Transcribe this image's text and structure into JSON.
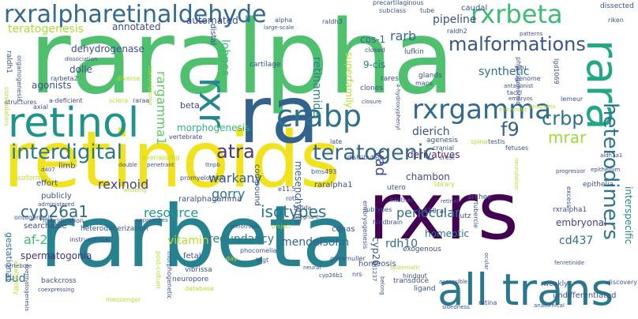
{
  "words": [
    {
      "text": "raralpha",
      "color": "#4fc06d"
    },
    {
      "text": "retinoids",
      "color": "#f2e21b"
    },
    {
      "text": "rarbeta",
      "color": "#26828e"
    },
    {
      "text": "rxrs",
      "color": "#440154"
    },
    {
      "text": "retinol",
      "color": "#1f948c"
    },
    {
      "text": "ra",
      "color": "#33628d"
    },
    {
      "text": "all trans",
      "color": "#2a788e"
    },
    {
      "text": "rara",
      "color": "#22a785"
    },
    {
      "text": "rxralpharetinaldehyde",
      "color": "#306a8e"
    },
    {
      "text": "rxr",
      "color": "#24868e"
    },
    {
      "text": "crabp",
      "color": "#2c718e"
    },
    {
      "text": "rxrgamma",
      "color": "#306a8e"
    },
    {
      "text": "rxrbeta",
      "color": "#3dbc74"
    },
    {
      "text": "heterodimers",
      "color": "#2b758e"
    },
    {
      "text": "malformations",
      "color": "#3a548c"
    },
    {
      "text": "interdigital",
      "color": "#2a788e"
    },
    {
      "text": "teratogenic",
      "color": "#31668e"
    },
    {
      "text": "atra",
      "color": "#453781"
    },
    {
      "text": "crbp",
      "color": "#2c738e"
    },
    {
      "text": "mrar",
      "color": "#a0da39"
    },
    {
      "text": "f9",
      "color": "#33628d"
    },
    {
      "text": "isotypes",
      "color": "#2c728e"
    },
    {
      "text": "cyp26a1",
      "color": "#306a8e"
    },
    {
      "text": "resource",
      "color": "#1f978b"
    },
    {
      "text": "periocular",
      "color": "#2f6c8e"
    },
    {
      "text": "warkany",
      "color": "#365d8d"
    },
    {
      "text": "gorry",
      "color": "#2a788e"
    },
    {
      "text": "rexinoid",
      "color": "#414287"
    },
    {
      "text": "vad",
      "color": "#404688"
    },
    {
      "text": "dierich",
      "color": "#3b528b"
    },
    {
      "text": "chambon",
      "color": "#3e4c8a"
    },
    {
      "text": "mesenchyme",
      "color": "#355f8d"
    },
    {
      "text": "compound",
      "color": "#3b528b"
    },
    {
      "text": "retinamide",
      "color": "#25848e"
    },
    {
      "text": "rargamma1",
      "color": "#5ec962"
    },
    {
      "text": "dehydrogenase",
      "color": "#3d4e8a"
    },
    {
      "text": "agonists",
      "color": "#3b528b"
    },
    {
      "text": "dolle",
      "color": "#3b528b"
    },
    {
      "text": "rarb",
      "color": "#31688e"
    },
    {
      "text": "pipeline",
      "color": "#3b528b"
    },
    {
      "text": "automated",
      "color": "#3f4889"
    },
    {
      "text": "annotated",
      "color": "#3d4d8a"
    },
    {
      "text": "teratogenesis",
      "color": "#aadc32"
    },
    {
      "text": "lohnes",
      "color": "#3dbc74"
    },
    {
      "text": "distal",
      "color": "#3d4e8a"
    },
    {
      "text": "superfamily",
      "color": "#b5de2b"
    },
    {
      "text": "9-cis",
      "color": "#2a788e"
    },
    {
      "text": "synthetic",
      "color": "#2e6e8e"
    },
    {
      "text": "cos-1",
      "color": "#31668e"
    },
    {
      "text": "derivatives",
      "color": "#482878"
    },
    {
      "text": "morphogenesis",
      "color": "#2fb47c"
    },
    {
      "text": "vitamin",
      "color": "#b5de2b"
    },
    {
      "text": "redundancy",
      "color": "#2a788e"
    },
    {
      "text": "mendelsohn",
      "color": "#31678e"
    },
    {
      "text": "rdh10",
      "color": "#31688e"
    },
    {
      "text": "spermatogonia",
      "color": "#46327e"
    },
    {
      "text": "af-2",
      "color": "#3fbc73"
    },
    {
      "text": "cd437",
      "color": "#2d708e"
    },
    {
      "text": "embryonal",
      "color": "#414487"
    },
    {
      "text": "homeotic",
      "color": "#2c728e"
    },
    {
      "text": "rxralpha1",
      "color": "#3b528b"
    },
    {
      "text": "cdnas",
      "color": "#3b528b"
    },
    {
      "text": "bud",
      "color": "#31688e"
    },
    {
      "text": "interspecific",
      "color": "#25858e"
    },
    {
      "text": "cyp26",
      "color": "#3a548c"
    },
    {
      "text": "homeosis",
      "color": "#3b528b"
    },
    {
      "text": "limb",
      "color": "#3b528b"
    },
    {
      "text": "effort",
      "color": "#3d4e8a"
    },
    {
      "text": "publicly",
      "color": "#3b528b"
    },
    {
      "text": "searchable",
      "color": "#3e4a89"
    },
    {
      "text": "gestational",
      "color": "#2c718e"
    },
    {
      "text": "raralpha1",
      "color": "#3b528b"
    },
    {
      "text": "raralphagamma",
      "color": "#3b528b"
    },
    {
      "text": "beta",
      "color": "#3e4989"
    },
    {
      "text": "fetal",
      "color": "#3b528b"
    },
    {
      "text": "caudal",
      "color": "#3b528b"
    },
    {
      "text": "lufkin",
      "color": "#3b528b"
    },
    {
      "text": "raldh1",
      "color": "#3b528b"
    },
    {
      "text": "isoforms",
      "color": "#b8de29"
    },
    {
      "text": "cartilage",
      "color": "#3b528b"
    },
    {
      "text": "glands",
      "color": "#3b528b"
    },
    {
      "text": "rares",
      "color": "#3b528b"
    },
    {
      "text": "clones",
      "color": "#3b528b"
    },
    {
      "text": "heterodimerization",
      "color": "#3b528b"
    },
    {
      "text": "backcross",
      "color": "#3b528b"
    },
    {
      "text": "vibrissa",
      "color": "#3b528b"
    },
    {
      "text": "neuropore",
      "color": "#3b528b"
    },
    {
      "text": "database",
      "color": "#b5de2b"
    },
    {
      "text": "transduce",
      "color": "#3b528b"
    },
    {
      "text": "ligand",
      "color": "#3b528b"
    },
    {
      "text": "hindgut",
      "color": "#3b528b"
    },
    {
      "text": "exogenous",
      "color": "#3b528b"
    },
    {
      "text": "subtypes",
      "color": "#3b528b"
    },
    {
      "text": "kastner",
      "color": "#3b528b"
    },
    {
      "text": "p450rai",
      "color": "#3b528b"
    },
    {
      "text": "lutz",
      "color": "#3b528b"
    },
    {
      "text": "epithelia",
      "color": "#3b528b"
    },
    {
      "text": "arches",
      "color": "#3b528b"
    },
    {
      "text": "utero",
      "color": "#3b528b"
    },
    {
      "text": "hindbrain",
      "color": "#3b528b"
    },
    {
      "text": "gansmuller",
      "color": "#3b528b"
    },
    {
      "text": "e11.5",
      "color": "#3b528b"
    },
    {
      "text": "bms493",
      "color": "#3b528b"
    },
    {
      "text": "roth",
      "color": "#3b528b"
    },
    {
      "text": "nrs",
      "color": "#3b528b"
    },
    {
      "text": "physiogenomic",
      "color": "#3b528b"
    },
    {
      "text": "genome",
      "color": "#3b528b"
    },
    {
      "text": "situ",
      "color": "#3b528b"
    },
    {
      "text": "riken",
      "color": "#3b528b"
    },
    {
      "text": "dissected",
      "color": "#3b528b"
    },
    {
      "text": "lemeur",
      "color": "#3b528b"
    },
    {
      "text": "testis",
      "color": "#3b528b"
    },
    {
      "text": "fetuses",
      "color": "#3b528b"
    },
    {
      "text": "agenesis",
      "color": "#3b528b"
    },
    {
      "text": "cranial",
      "color": "#3b528b"
    },
    {
      "text": "crest",
      "color": "#3b528b"
    },
    {
      "text": "spina",
      "color": "#b5de2b"
    },
    {
      "text": "late",
      "color": "#3b528b"
    },
    {
      "text": "distributed",
      "color": "#3b528b"
    },
    {
      "text": "vertebrate",
      "color": "#3b528b"
    },
    {
      "text": "overlapping",
      "color": "#b5de2b"
    },
    {
      "text": "ontogenesis",
      "color": "#3b528b"
    },
    {
      "text": "hybridization",
      "color": "#3b528b"
    },
    {
      "text": "administered",
      "color": "#3b528b"
    },
    {
      "text": "availability",
      "color": "#b5de2b"
    },
    {
      "text": "instrumental",
      "color": "#3b528b"
    },
    {
      "text": "post-coitum",
      "color": "#b5de2b"
    },
    {
      "text": "morphogenetic",
      "color": "#3b528b"
    },
    {
      "text": "messenger",
      "color": "#b5de2b"
    },
    {
      "text": "phocomelia",
      "color": "#3b528b"
    },
    {
      "text": "tegt",
      "color": "#3b528b"
    },
    {
      "text": "day",
      "color": "#b5de2b"
    },
    {
      "text": "promyelocytic",
      "color": "#3b528b"
    },
    {
      "text": "bifida",
      "color": "#3b528b"
    },
    {
      "text": "pregnant",
      "color": "#3b528b"
    },
    {
      "text": "embryogenesis",
      "color": "#3b528b"
    },
    {
      "text": "library",
      "color": "#b5de2b"
    },
    {
      "text": "retinal",
      "color": "#3b528b"
    },
    {
      "text": "tubercle",
      "color": "#3b528b"
    },
    {
      "text": "excess",
      "color": "#3b528b"
    },
    {
      "text": "coregulators",
      "color": "#b5de2b"
    },
    {
      "text": "raldh2",
      "color": "#3b528b"
    },
    {
      "text": "raldh3",
      "color": "#3b528b"
    },
    {
      "text": "alpha",
      "color": "#3b528b"
    },
    {
      "text": "large-scale",
      "color": "#3b528b"
    },
    {
      "text": "precartilaginous",
      "color": "#3b528b"
    },
    {
      "text": "subclass",
      "color": "#3b528b"
    },
    {
      "text": "tube",
      "color": "#3b528b"
    },
    {
      "text": "patterns",
      "color": "#3b528b"
    },
    {
      "text": "organogenesis",
      "color": "#3b528b"
    },
    {
      "text": "dissociation",
      "color": "#3b528b"
    },
    {
      "text": "rarbeta2",
      "color": "#3b528b"
    },
    {
      "text": "a-deficient",
      "color": "#3b528b"
    },
    {
      "text": "diverse",
      "color": "#b5de2b"
    },
    {
      "text": "transcriptome",
      "color": "#b5de2b"
    },
    {
      "text": "closed",
      "color": "#3b528b"
    },
    {
      "text": "closure",
      "color": "#3b528b"
    },
    {
      "text": "maps",
      "color": "#3b528b"
    },
    {
      "text": "antagonist",
      "color": "#3b528b"
    },
    {
      "text": "taccl",
      "color": "#3b528b"
    },
    {
      "text": "embryos",
      "color": "#3b528b"
    },
    {
      "text": "lgd1069",
      "color": "#3b528b"
    },
    {
      "text": "programs",
      "color": "#b5de2b"
    },
    {
      "text": "structures",
      "color": "#3b528b"
    },
    {
      "text": "axial",
      "color": "#3b528b"
    },
    {
      "text": "sclera",
      "color": "#b5de2b"
    },
    {
      "text": "raraa",
      "color": "#3b528b"
    },
    {
      "text": "4-hydroxyphenyl",
      "color": "#3b528b"
    },
    {
      "text": "enzymatic",
      "color": "#b5de2b"
    },
    {
      "text": "ttnpb",
      "color": "#3b528b"
    },
    {
      "text": "double",
      "color": "#3b528b"
    },
    {
      "text": "penetrant",
      "color": "#3b528b"
    },
    {
      "text": "d407",
      "color": "#3b528b"
    },
    {
      "text": "approaches",
      "color": "#3b528b"
    },
    {
      "text": "pleiotropic",
      "color": "#3b528b"
    },
    {
      "text": "project",
      "color": "#b5de2b"
    },
    {
      "text": "coexpressing",
      "color": "#3b528b"
    },
    {
      "text": "spermatogenesis",
      "color": "#3b528b"
    },
    {
      "text": "vertebrae",
      "color": "#3b528b"
    },
    {
      "text": "webbing",
      "color": "#b5de2b"
    },
    {
      "text": "belong",
      "color": "#3b528b"
    },
    {
      "text": "srl1237",
      "color": "#3b528b"
    },
    {
      "text": "cyp26b1",
      "color": "#3b528b"
    },
    {
      "text": "neural",
      "color": "#3b528b"
    },
    {
      "text": "ocular",
      "color": "#3b528b"
    },
    {
      "text": "systematic",
      "color": "#b5de2b"
    },
    {
      "text": "accessible",
      "color": "#3b528b"
    },
    {
      "text": "sidedness",
      "color": "#3b528b"
    },
    {
      "text": "retina",
      "color": "#3b528b"
    },
    {
      "text": "anatomical",
      "color": "#3b528b"
    },
    {
      "text": "weakly",
      "color": "#3b528b"
    },
    {
      "text": "fenretinide",
      "color": "#3b528b"
    },
    {
      "text": "undifferentiated",
      "color": "#3b528b"
    },
    {
      "text": "discovery",
      "color": "#3b528b"
    },
    {
      "text": "aldh1a1",
      "color": "#3b528b"
    },
    {
      "text": "neurulation",
      "color": "#b5de2b"
    },
    {
      "text": "progressor",
      "color": "#3b528b"
    },
    {
      "text": "epithelium",
      "color": "#3b528b"
    }
  ]
}
